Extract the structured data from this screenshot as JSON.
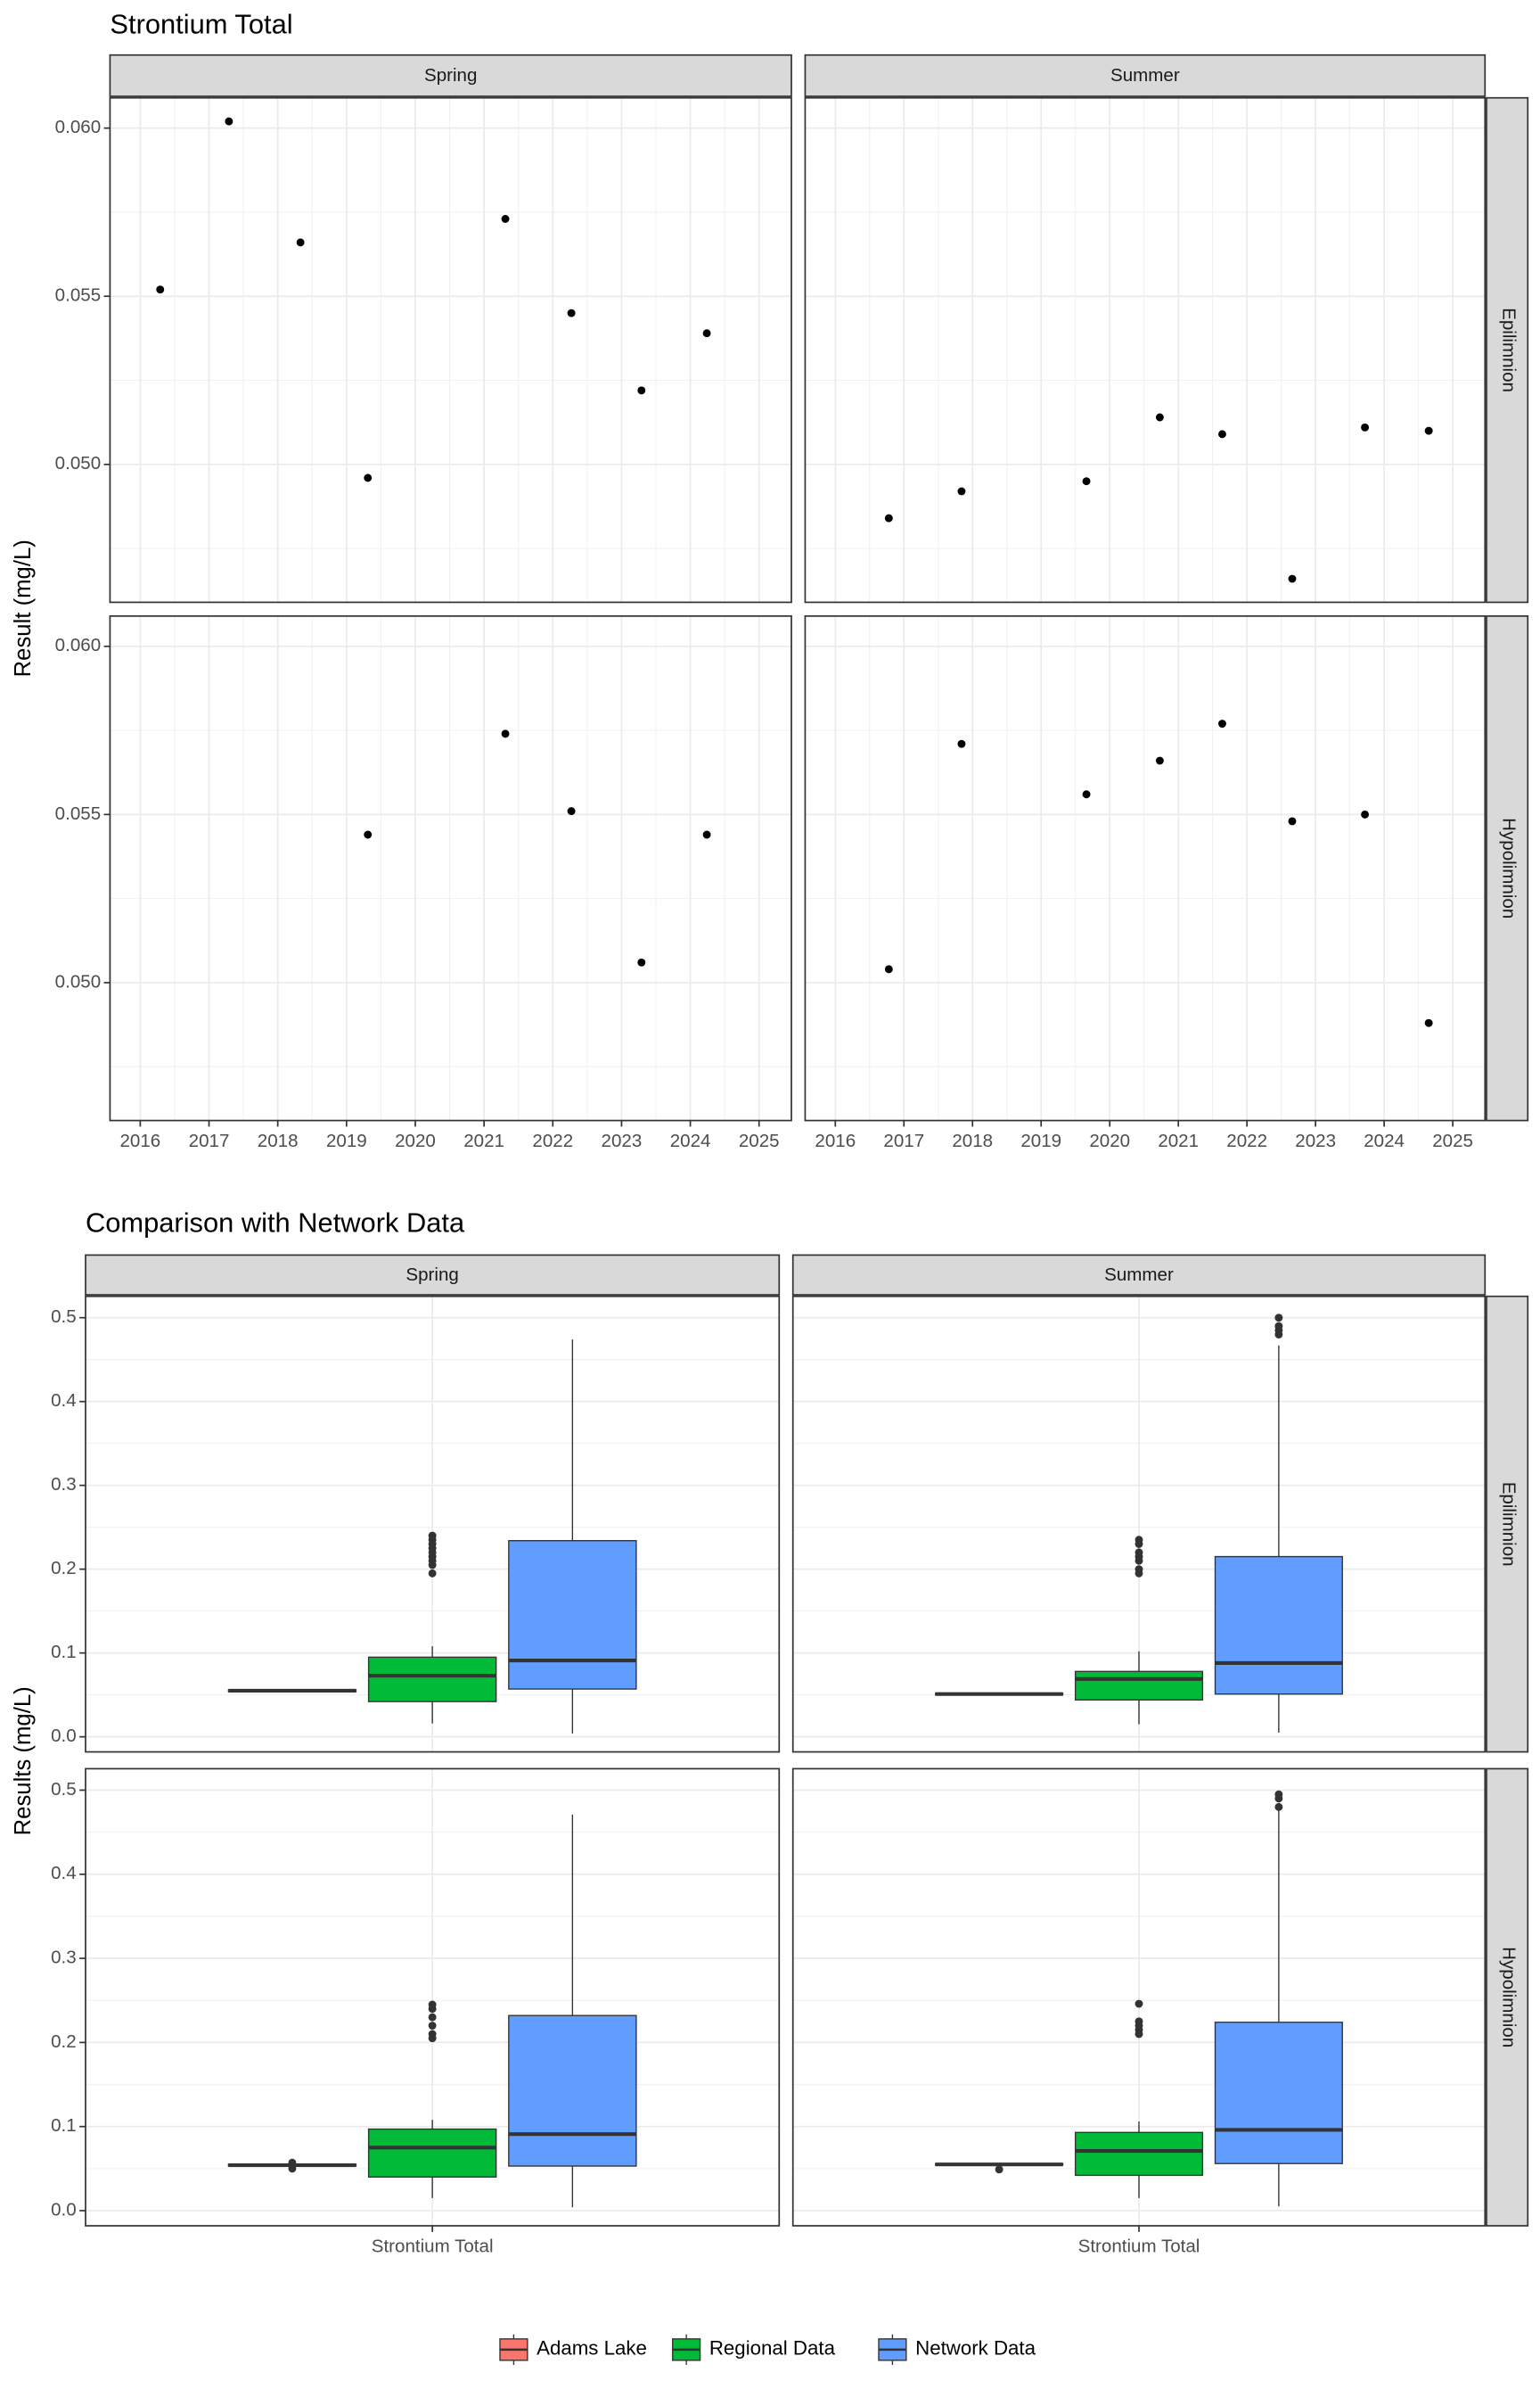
{
  "chart_data": [
    {
      "type": "scatter",
      "title": "Strontium Total",
      "y_label": "Result (mg/L)",
      "columns": [
        "Spring",
        "Summer"
      ],
      "rows": [
        "Epilimnion",
        "Hypolimnion"
      ],
      "color": "#000000",
      "grid": true,
      "xlim": [
        2015.56,
        2025.47
      ],
      "xticks": [
        2016,
        2017,
        2018,
        2019,
        2020,
        2021,
        2022,
        2023,
        2024,
        2025
      ],
      "ylim": [
        0.0459,
        0.0609
      ],
      "yticks": [
        {
          "value": 0.05,
          "label": "0.050"
        },
        0.055,
        {
          "value": 0.06,
          "label": "0.060"
        }
      ],
      "panels": [
        [
          {
            "x": [
              2016.29,
              2017.29,
              2018.33,
              2019.31,
              2021.31,
              2022.27,
              2023.29,
              2024.24
            ],
            "values": [
              0.0552,
              0.0602,
              0.0566,
              0.0496,
              0.0573,
              0.0545,
              0.0522,
              0.0539
            ]
          },
          {
            "x": [
              2016.78,
              2017.84,
              2019.66,
              2020.73,
              2021.64,
              2022.66,
              2023.72,
              2024.65
            ],
            "values": [
              0.0484,
              0.0492,
              0.0495,
              0.0514,
              0.0509,
              0.0466,
              0.0511,
              0.051
            ]
          }
        ],
        [
          {
            "x": [
              2019.31,
              2021.31,
              2022.27,
              2023.29,
              2024.24
            ],
            "values": [
              0.0544,
              0.0574,
              0.0551,
              0.0506,
              0.0544
            ]
          },
          {
            "x": [
              2016.78,
              2017.84,
              2019.66,
              2020.73,
              2021.64,
              2022.66,
              2023.72,
              2024.65
            ],
            "values": [
              0.0504,
              0.0571,
              0.0556,
              0.0566,
              0.0577,
              0.0548,
              0.055,
              0.0488
            ]
          }
        ]
      ]
    },
    {
      "type": "box",
      "title": "Comparison with Network Data",
      "y_label": "Results (mg/L)",
      "columns": [
        "Spring",
        "Summer"
      ],
      "rows": [
        "Epilimnion",
        "Hypolimnion"
      ],
      "categories": [
        "Strontium Total"
      ],
      "grid": true,
      "legend": "bottom",
      "ylim": [
        -0.018,
        0.5255
      ],
      "yticks": [
        {
          "value": 0,
          "label": "0.0"
        },
        0.1,
        0.2,
        0.3,
        0.4,
        0.5
      ],
      "series": [
        {
          "name": "Adams Lake",
          "color": "#F8766D",
          "panels": [
            [
              {
                "low": 0.054,
                "q1": 0.054,
                "median": 0.055,
                "q3": 0.056,
                "high": 0.056,
                "outliers": []
              },
              {
                "low": 0.05,
                "q1": 0.05,
                "median": 0.051,
                "q3": 0.052,
                "high": 0.052,
                "outliers": []
              }
            ],
            [
              {
                "low": 0.053,
                "q1": 0.053,
                "median": 0.054,
                "q3": 0.055,
                "high": 0.055,
                "outliers": [
                  0.05,
                  0.057
                ]
              },
              {
                "low": 0.054,
                "q1": 0.054,
                "median": 0.055,
                "q3": 0.056,
                "high": 0.056,
                "outliers": [
                  0.049
                ]
              }
            ]
          ]
        },
        {
          "name": "Regional Data",
          "color": "#00BA38",
          "panels": [
            [
              {
                "low": 0.016,
                "q1": 0.042,
                "median": 0.073,
                "q3": 0.095,
                "high": 0.108,
                "outliers": [
                  0.195,
                  0.205,
                  0.21,
                  0.215,
                  0.22,
                  0.225,
                  0.23,
                  0.235,
                  0.24
                ]
              },
              {
                "low": 0.015,
                "q1": 0.044,
                "median": 0.069,
                "q3": 0.078,
                "high": 0.102,
                "outliers": [
                  0.195,
                  0.2,
                  0.21,
                  0.215,
                  0.22,
                  0.23,
                  0.235
                ]
              }
            ],
            [
              {
                "low": 0.015,
                "q1": 0.04,
                "median": 0.075,
                "q3": 0.097,
                "high": 0.108,
                "outliers": [
                  0.205,
                  0.21,
                  0.22,
                  0.23,
                  0.24,
                  0.245
                ]
              },
              {
                "low": 0.015,
                "q1": 0.042,
                "median": 0.071,
                "q3": 0.093,
                "high": 0.106,
                "outliers": [
                  0.21,
                  0.215,
                  0.22,
                  0.225,
                  0.246
                ]
              }
            ]
          ]
        },
        {
          "name": "Network Data",
          "color": "#619CFF",
          "panels": [
            [
              {
                "low": 0.004,
                "q1": 0.057,
                "median": 0.091,
                "q3": 0.234,
                "high": 0.474,
                "outliers": []
              },
              {
                "low": 0.005,
                "q1": 0.051,
                "median": 0.088,
                "q3": 0.215,
                "high": 0.467,
                "outliers": [
                  0.48,
                  0.485,
                  0.49,
                  0.5
                ]
              }
            ],
            [
              {
                "low": 0.004,
                "q1": 0.053,
                "median": 0.091,
                "q3": 0.232,
                "high": 0.471,
                "outliers": []
              },
              {
                "low": 0.005,
                "q1": 0.056,
                "median": 0.096,
                "q3": 0.224,
                "high": 0.478,
                "outliers": [
                  0.48,
                  0.49,
                  0.495
                ]
              }
            ]
          ]
        }
      ]
    }
  ]
}
